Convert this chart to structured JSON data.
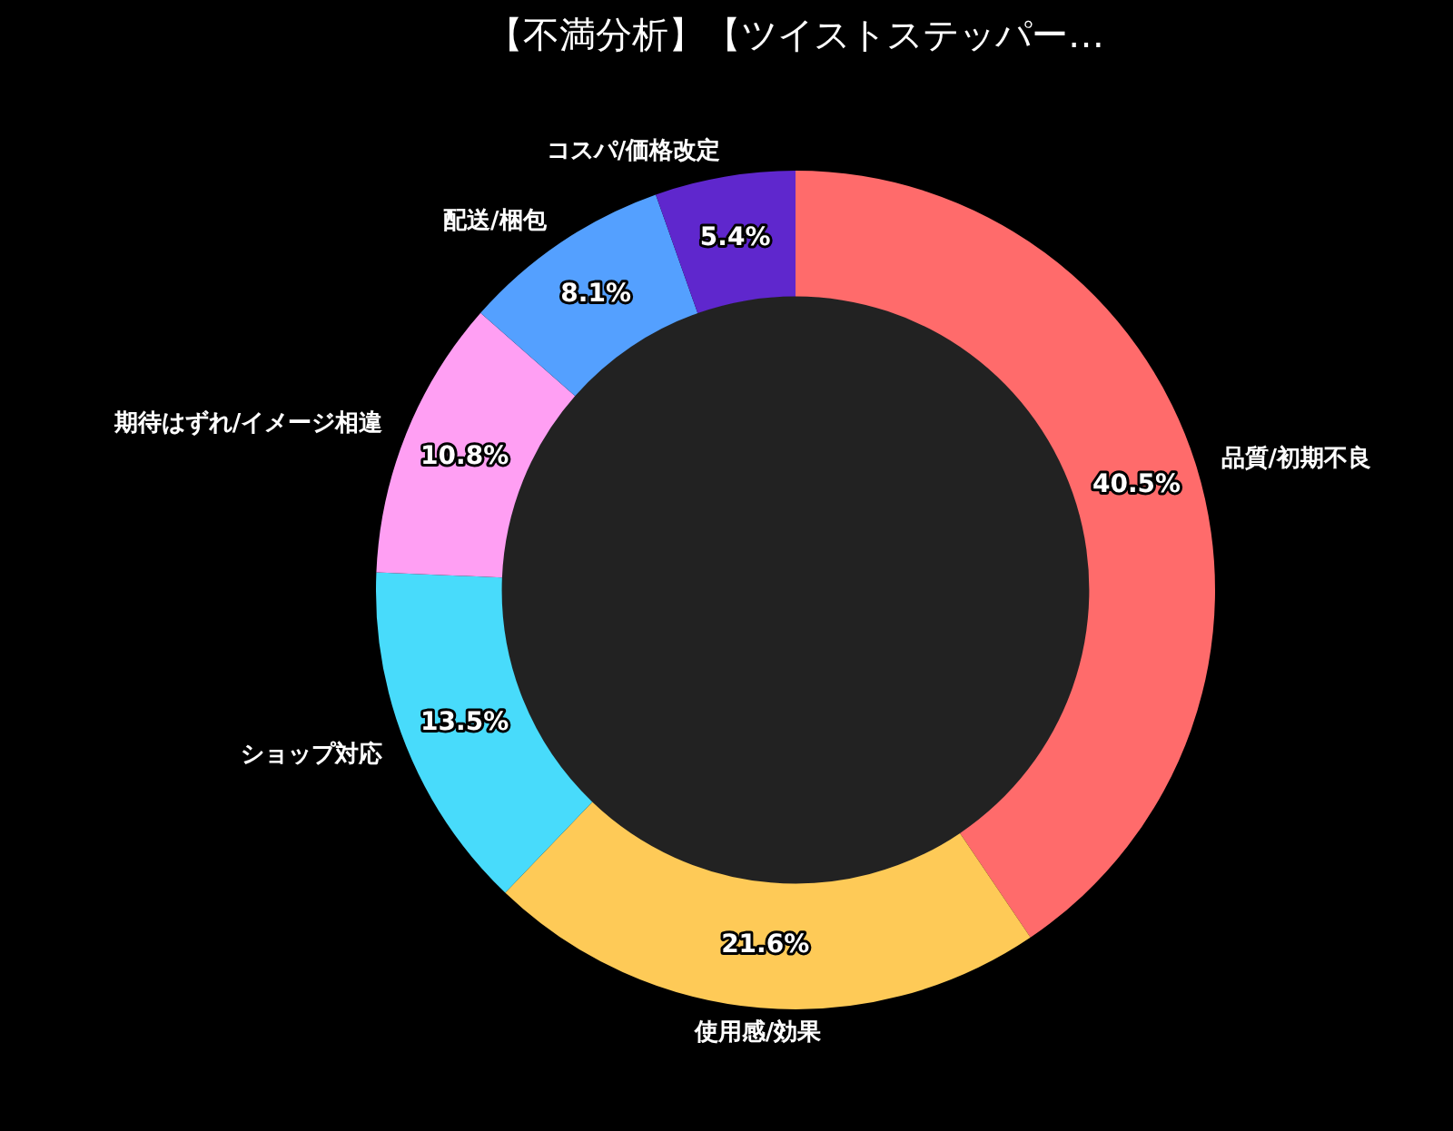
{
  "chart_data": {
    "type": "donut",
    "title": "【不満分析】【ツイストステッパー…",
    "categories": [
      "品質/初期不良",
      "使用感/効果",
      "ショップ対応",
      "期待はずれ/イメージ相違",
      "配送/梱包",
      "コスパ/価格改定"
    ],
    "values": [
      40.5,
      21.6,
      13.5,
      10.8,
      8.1,
      5.4
    ],
    "colors": [
      "#ff6b6b",
      "#feca57",
      "#48dbfb",
      "#ff9ff3",
      "#54a0ff",
      "#5f27cd"
    ],
    "value_labels": [
      "40.5%",
      "21.6%",
      "13.5%",
      "10.8%",
      "8.1%",
      "5.4%"
    ],
    "legend": false
  }
}
